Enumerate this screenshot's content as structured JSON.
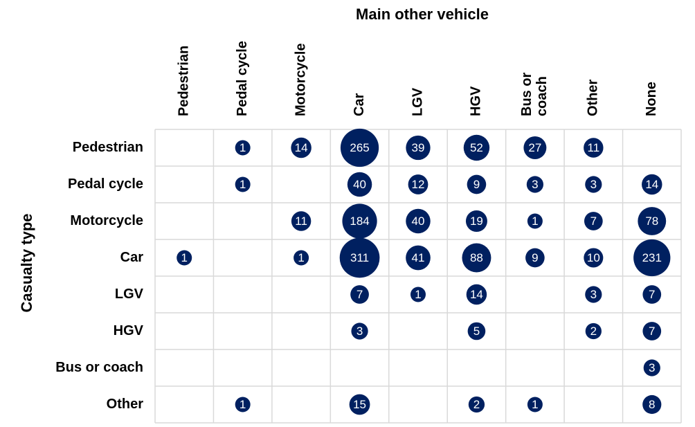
{
  "chart_data": {
    "type": "bubble-matrix",
    "title": "Main other vehicle",
    "y_label": "Casualty type",
    "color": "#002060",
    "categories": [
      "Pedestrian",
      "Pedal cycle",
      "Motorcycle",
      "Car",
      "LGV",
      "HGV",
      "Bus or coach",
      "Other",
      "None"
    ],
    "series": [
      {
        "name": "Pedestrian",
        "values": [
          null,
          1,
          14,
          265,
          39,
          52,
          27,
          11,
          null
        ]
      },
      {
        "name": "Pedal cycle",
        "values": [
          null,
          1,
          null,
          40,
          12,
          9,
          3,
          3,
          14
        ]
      },
      {
        "name": "Motorcycle",
        "values": [
          null,
          null,
          11,
          184,
          40,
          19,
          1,
          7,
          78
        ]
      },
      {
        "name": "Car",
        "values": [
          1,
          null,
          1,
          311,
          41,
          88,
          9,
          10,
          231
        ]
      },
      {
        "name": "LGV",
        "values": [
          null,
          null,
          null,
          7,
          1,
          14,
          null,
          3,
          7
        ]
      },
      {
        "name": "HGV",
        "values": [
          null,
          null,
          null,
          3,
          null,
          5,
          null,
          2,
          7
        ]
      },
      {
        "name": "Bus or coach",
        "values": [
          null,
          null,
          null,
          null,
          null,
          null,
          null,
          null,
          3
        ]
      },
      {
        "name": "Other",
        "values": [
          null,
          1,
          null,
          15,
          null,
          2,
          1,
          null,
          8
        ]
      }
    ]
  }
}
